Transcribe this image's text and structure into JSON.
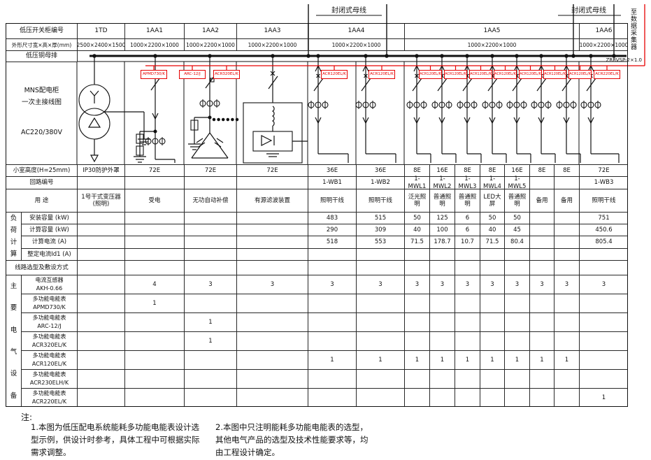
{
  "top": {
    "busway_label": "封闭式母线",
    "busway_label2": "封闭式母线",
    "collector": "至数据采集器",
    "cable": "ZRRVSP-2×1.0"
  },
  "header": {
    "row1_label": "低压开关柜编号",
    "row2_label": "外形尺寸宽×高×厚(mm)",
    "row3_label": "低压铜母排",
    "cabinets": [
      {
        "id": "1TD",
        "dim": "2500×2400×1500"
      },
      {
        "id": "1AA1",
        "dim": "1000×2200×1000"
      },
      {
        "id": "1AA2",
        "dim": "1000×2200×1000"
      },
      {
        "id": "1AA3",
        "dim": "1000×2200×1000"
      },
      {
        "id": "1AA4",
        "dim": "1000×2200×1000"
      },
      {
        "id": "1AA5",
        "dim": "1000×2200×1000"
      },
      {
        "id": "1AA6",
        "dim": "1000×2200×1000"
      }
    ]
  },
  "schematic": {
    "panel_line1": "MNS配电柜",
    "panel_line2": "一次主接线图",
    "voltage": "AC220/380V",
    "meters": [
      "APMD730/K",
      "ARC-12/J",
      "ACR320EL/K",
      "ACR120EL/K",
      "ACR120EL/K",
      "ACR120EL/K",
      "ACR120EL/K",
      "ACR120EL/K",
      "ACR120EL/K",
      "ACR120EL/K",
      "ACR120EL/K",
      "ACR120EL/K",
      "ACR220EL/K"
    ]
  },
  "table": {
    "groups": {
      "load": "负荷计算",
      "equip": "主要电气设备"
    },
    "rows": [
      {
        "key": "height",
        "label": "小室高度(H=25mm)",
        "values": [
          "IP30防护外罩",
          "72E",
          "72E",
          "72E",
          "36E",
          "36E",
          "8E",
          "16E",
          "8E",
          "8E",
          "16E",
          "8E",
          "8E",
          "72E"
        ]
      },
      {
        "key": "circuit",
        "label": "回路编号",
        "values": [
          "",
          "",
          "",
          "",
          "1-WB1",
          "1-WB2",
          "1-MWL1",
          "1-MWL2",
          "1-MWL3",
          "1-MWL4",
          "1-MWL5",
          "",
          "",
          "1-WB3"
        ]
      },
      {
        "key": "purpose",
        "label": "用 途",
        "values": [
          "1号干式变压器(照明)",
          "受电",
          "无功自动补偿",
          "有源滤波装置",
          "照明干线",
          "照明干线",
          "泛光照明",
          "普通照明",
          "普通照明",
          "LED大屏",
          "普通照明",
          "备用",
          "备用",
          "照明干线"
        ]
      },
      {
        "key": "installed_capacity",
        "label": "安装容量 (kW)",
        "group": "load",
        "values": [
          "",
          "",
          "",
          "",
          "483",
          "515",
          "50",
          "125",
          "6",
          "50",
          "50",
          "",
          "",
          "751"
        ]
      },
      {
        "key": "calculated_capacity",
        "label": "计算容量 (kW)",
        "group": "load",
        "values": [
          "",
          "",
          "",
          "",
          "290",
          "309",
          "40",
          "100",
          "6",
          "40",
          "45",
          "",
          "",
          "450.6"
        ]
      },
      {
        "key": "calculated_current",
        "label": "计算电流 (A)",
        "group": "load",
        "values": [
          "",
          "",
          "",
          "",
          "518",
          "553",
          "71.5",
          "178.7",
          "10.7",
          "71.5",
          "80.4",
          "",
          "",
          "805.4"
        ]
      },
      {
        "key": "setting_current",
        "label": "整定电流Id1 (A)",
        "group": "load",
        "values": [
          "",
          "",
          "",
          "",
          "",
          "",
          "",
          "",
          "",
          "",
          "",
          "",
          "",
          ""
        ]
      },
      {
        "key": "line_selection",
        "label": "线路选型及敷设方式",
        "values": [
          "",
          "",
          "",
          "",
          "",
          "",
          "",
          "",
          "",
          "",
          "",
          "",
          "",
          ""
        ]
      }
    ],
    "devices": [
      {
        "name": "电流互感器",
        "model": "AKH-0.66",
        "values": [
          "",
          "4",
          "3",
          "3",
          "3",
          "3",
          "3",
          "3",
          "3",
          "3",
          "3",
          "3",
          "3",
          "3"
        ]
      },
      {
        "name": "多功能电能表",
        "model": "APMD730/K",
        "values": [
          "",
          "1",
          "",
          "",
          "",
          "",
          "",
          "",
          "",
          "",
          "",
          "",
          "",
          ""
        ]
      },
      {
        "name": "多功能电能表",
        "model": "ARC-12/J",
        "values": [
          "",
          "",
          "1",
          "",
          "",
          "",
          "",
          "",
          "",
          "",
          "",
          "",
          "",
          ""
        ]
      },
      {
        "name": "多功能电能表",
        "model": "ACR320EL/K",
        "values": [
          "",
          "",
          "1",
          "",
          "",
          "",
          "",
          "",
          "",
          "",
          "",
          "",
          "",
          ""
        ]
      },
      {
        "name": "多功能电能表",
        "model": "ACR120EL/K",
        "values": [
          "",
          "",
          "",
          "",
          "1",
          "1",
          "1",
          "1",
          "1",
          "1",
          "1",
          "1",
          "1",
          ""
        ]
      },
      {
        "name": "多功能电能表",
        "model": "ACR230ELH/K",
        "values": [
          "",
          "",
          "",
          "",
          "",
          "",
          "",
          "",
          "",
          "",
          "",
          "",
          "",
          ""
        ]
      },
      {
        "name": "多功能电能表",
        "model": "ACR220EL/K",
        "values": [
          "",
          "",
          "",
          "",
          "",
          "",
          "",
          "",
          "",
          "",
          "",
          "",
          "",
          "1"
        ]
      }
    ]
  },
  "notes": {
    "title": "注:",
    "n1": [
      "1.本图为低压配电系统能耗多功能电能表设计选",
      "型示例，供设计时参考，具体工程中可根据实际",
      "需求调整。"
    ],
    "n2": [
      "2.本图中只注明能耗多功能电能表的选型，",
      "其他电气产品的选型及技术性能要求等，均",
      "由工程设计确定。"
    ]
  },
  "colors": {
    "accent": "#e60000",
    "line": "#111111"
  }
}
